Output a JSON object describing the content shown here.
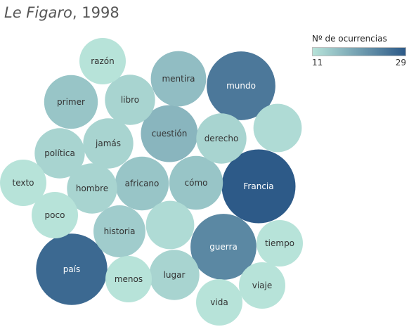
{
  "header": {
    "publication": "Le Figaro",
    "separator": ", ",
    "year": "1998"
  },
  "legend": {
    "title": "Nº de ocurrencias",
    "min": "11",
    "max": "29",
    "color_low": "#b7e3d9",
    "color_high": "#2d5a88"
  },
  "chart_data": {
    "type": "bubble",
    "measure": "Nº de ocurrencias",
    "range": [
      11,
      29
    ],
    "points": [
      {
        "word": "Francia",
        "value": 29
      },
      {
        "word": "país",
        "value": 27
      },
      {
        "word": "mundo",
        "value": 25
      },
      {
        "word": "guerra",
        "value": 23
      },
      {
        "word": "cuestión",
        "value": 17
      },
      {
        "word": "mentira",
        "value": 16
      },
      {
        "word": "primer",
        "value": 15
      },
      {
        "word": "africano",
        "value": 15
      },
      {
        "word": "cómo",
        "value": 15
      },
      {
        "word": "historia",
        "value": 14
      },
      {
        "word": "libro",
        "value": 13
      },
      {
        "word": "jamás",
        "value": 13
      },
      {
        "word": "política",
        "value": 13
      },
      {
        "word": "hombre",
        "value": 13
      },
      {
        "word": "derecho",
        "value": 13
      },
      {
        "word": "lugar",
        "value": 13
      },
      {
        "word": "",
        "value": 12
      },
      {
        "word": "",
        "value": 12
      },
      {
        "word": "razón",
        "value": 11
      },
      {
        "word": "texto",
        "value": 11
      },
      {
        "word": "poco",
        "value": 11
      },
      {
        "word": "menos",
        "value": 11
      },
      {
        "word": "tiempo",
        "value": 11
      },
      {
        "word": "viaje",
        "value": 11
      },
      {
        "word": "vida",
        "value": 11
      }
    ]
  }
}
